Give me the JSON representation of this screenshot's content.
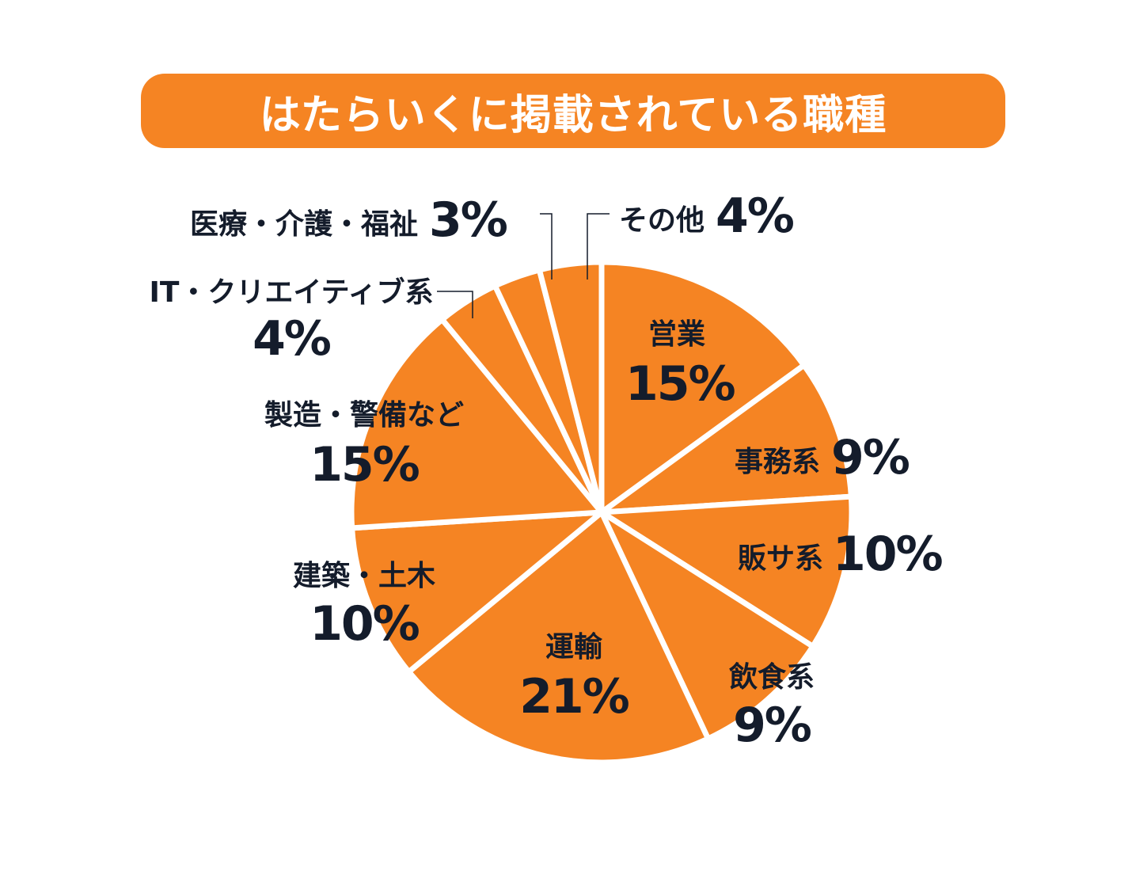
{
  "colors": {
    "accent": "#f58423",
    "slice_border": "#ffffff",
    "text": "#141c2b",
    "leader": "#141c2b"
  },
  "chart_data": {
    "type": "pie",
    "title": "はたらいくに掲載されている職種",
    "slices": [
      {
        "label": "営業",
        "value": 15,
        "display": "15%"
      },
      {
        "label": "事務系",
        "value": 9,
        "display": "9%"
      },
      {
        "label": "販サ系",
        "value": 10,
        "display": "10%"
      },
      {
        "label": "飲食系",
        "value": 9,
        "display": "9%"
      },
      {
        "label": "運輸",
        "value": 21,
        "display": "21%"
      },
      {
        "label": "建築・土木",
        "value": 10,
        "display": "10%"
      },
      {
        "label": "製造・警備など",
        "value": 15,
        "display": "15%"
      },
      {
        "label": "IT・クリエイティブ系",
        "value": 4,
        "display": "4%"
      },
      {
        "label": "医療・介護・福祉",
        "value": 3,
        "display": "3%"
      },
      {
        "label": "その他",
        "value": 4,
        "display": "4%"
      }
    ],
    "start": "12 o'clock",
    "direction": "clockwise",
    "legend": "none"
  }
}
